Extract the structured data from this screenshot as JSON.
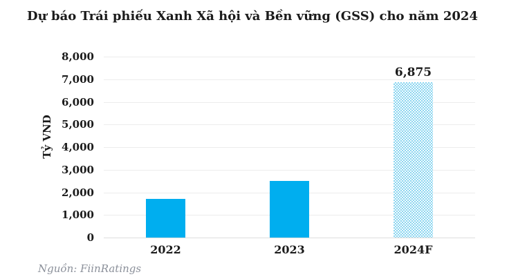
{
  "chart_data": {
    "type": "bar",
    "title": "Dự báo Trái phiếu Xanh Xã hội và Bền vững (GSS) cho năm 2024",
    "ylabel": "Tỷ VND",
    "xlabel": "",
    "categories": [
      "2022",
      "2023",
      "2024F"
    ],
    "values": [
      1700,
      2500,
      6875
    ],
    "bar_styles": [
      "solid",
      "solid",
      "pattern"
    ],
    "data_labels": [
      null,
      null,
      "6,875"
    ],
    "ylim": [
      0,
      8000
    ],
    "ytick_step": 1000,
    "ytick_labels": [
      "0",
      "1,000",
      "2,000",
      "3,000",
      "4,000",
      "5,000",
      "6,000",
      "7,000",
      "8,000"
    ],
    "grid": "horizontal",
    "legend": "none",
    "source": "Nguồn: FiinRatings",
    "colors": {
      "bar": "#00AEEF",
      "pattern_fg": "#8dd6f0",
      "pattern_bg": "#f3fbfe",
      "gridline": "#ececec",
      "axis_line": "#dedede",
      "text": "#1b1b1b",
      "source_text": "#8b909a"
    }
  }
}
